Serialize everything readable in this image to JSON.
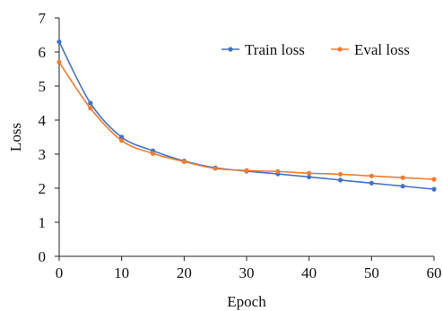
{
  "chart_data": {
    "type": "line",
    "title": "",
    "xlabel": "Epoch",
    "ylabel": "Loss",
    "xlim": [
      0,
      60
    ],
    "ylim": [
      0,
      7
    ],
    "xticks": [
      0,
      10,
      20,
      30,
      40,
      50,
      60
    ],
    "yticks": [
      0,
      1,
      2,
      3,
      4,
      5,
      6,
      7
    ],
    "grid": false,
    "legend_position": "top-right",
    "series": [
      {
        "name": "Train loss",
        "color": "#4472C4",
        "x": [
          0,
          5,
          10,
          15,
          20,
          25,
          30,
          35,
          40,
          45,
          50,
          55,
          60
        ],
        "y": [
          6.3,
          4.5,
          3.5,
          3.1,
          2.8,
          2.6,
          2.5,
          2.42,
          2.33,
          2.24,
          2.15,
          2.06,
          1.97
        ]
      },
      {
        "name": "Eval loss",
        "color": "#ED7D31",
        "x": [
          0,
          5,
          10,
          15,
          20,
          25,
          30,
          35,
          40,
          45,
          50,
          55,
          60
        ],
        "y": [
          5.7,
          4.35,
          3.4,
          3.02,
          2.78,
          2.58,
          2.52,
          2.49,
          2.44,
          2.41,
          2.36,
          2.31,
          2.26
        ]
      }
    ]
  }
}
